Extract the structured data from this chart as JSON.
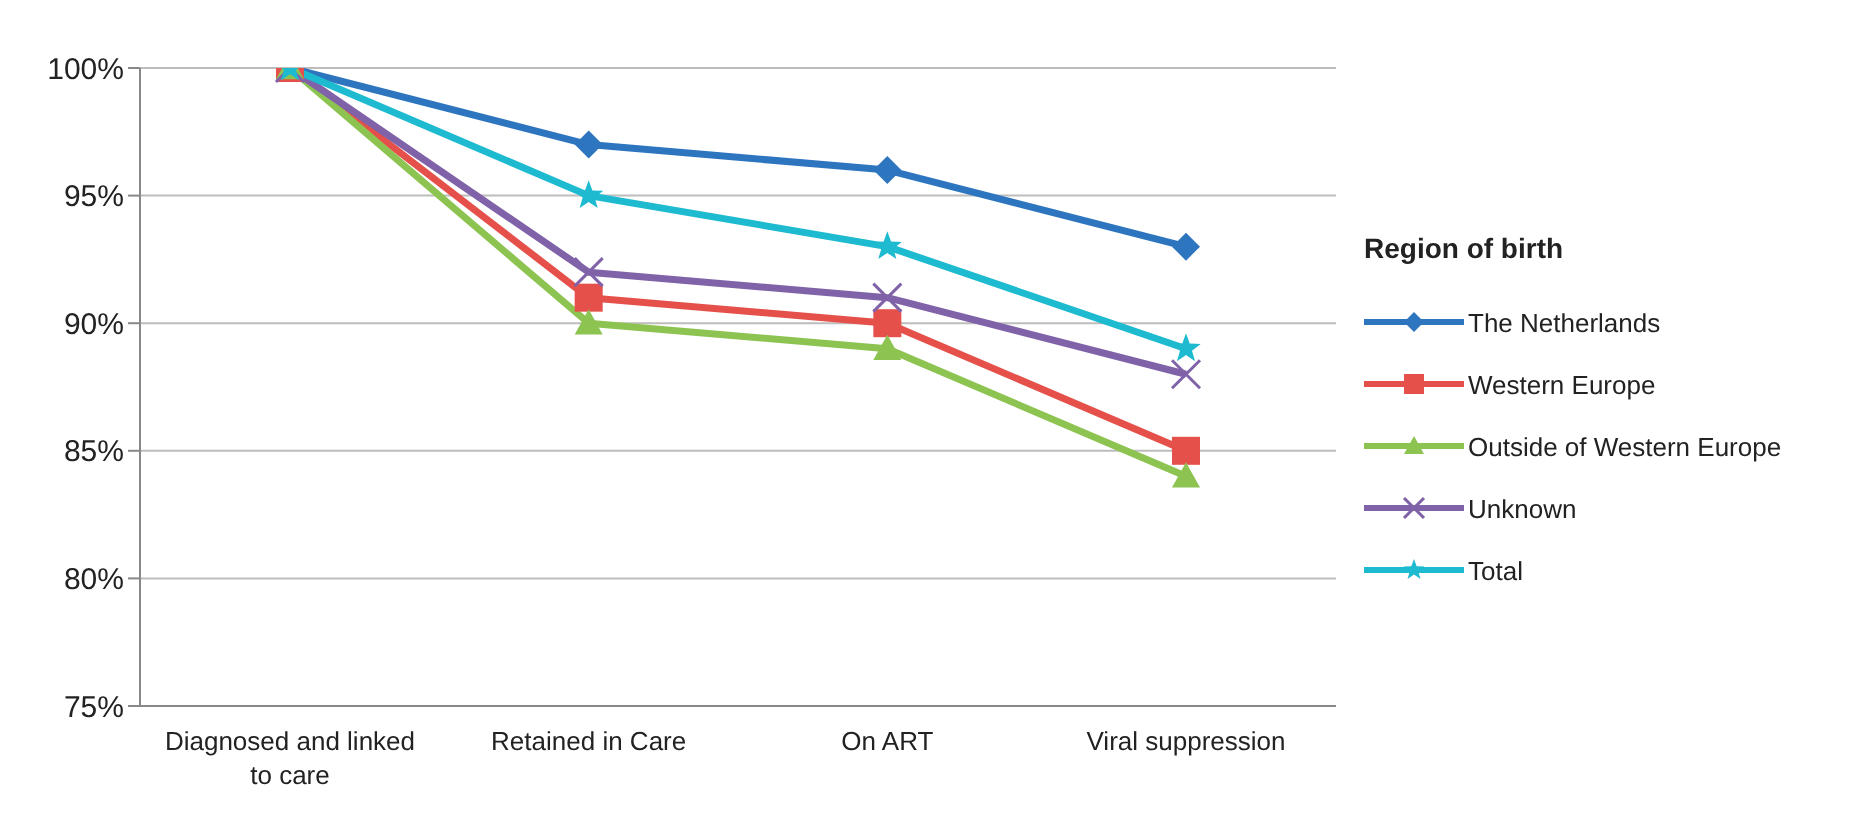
{
  "chart_data": {
    "type": "line",
    "legend_title": "Region of birth",
    "categories": [
      "Diagnosed and linked to care",
      "Retained in Care",
      "On ART",
      "Viral suppression"
    ],
    "series": [
      {
        "name": "The Netherlands",
        "color": "#2e75c0",
        "marker": "diamond",
        "values": [
          100,
          97,
          96,
          93
        ]
      },
      {
        "name": "Western Europe",
        "color": "#e5514a",
        "marker": "square",
        "values": [
          100,
          91,
          90,
          85
        ]
      },
      {
        "name": "Outside of Western Europe",
        "color": "#8dc451",
        "marker": "triangle",
        "values": [
          100,
          90,
          89,
          84
        ]
      },
      {
        "name": "Unknown",
        "color": "#8062a8",
        "marker": "cross",
        "values": [
          100,
          92,
          91,
          88
        ]
      },
      {
        "name": "Total",
        "color": "#1dbad0",
        "marker": "star",
        "values": [
          100,
          95,
          93,
          89
        ]
      }
    ],
    "ylim": [
      75,
      100
    ],
    "yticks": [
      {
        "value": 75,
        "label": "75%"
      },
      {
        "value": 80,
        "label": "80%"
      },
      {
        "value": 85,
        "label": "85%"
      },
      {
        "value": 90,
        "label": "90%"
      },
      {
        "value": 95,
        "label": "95%"
      },
      {
        "value": 100,
        "label": "100%"
      }
    ],
    "grid": "y",
    "legend": "right",
    "line_style": "solid"
  }
}
